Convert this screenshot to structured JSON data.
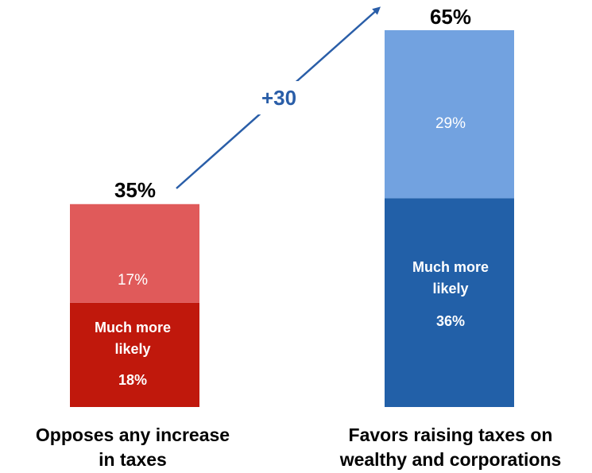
{
  "chart_data": {
    "type": "bar",
    "stacked": true,
    "ylim": [
      0,
      65
    ],
    "categories": [
      {
        "line1": "Opposes any increase",
        "line2": "in taxes"
      },
      {
        "line1": "Favors raising taxes on",
        "line2": "wealthy and corporations"
      }
    ],
    "bars": [
      {
        "total": 35,
        "total_label": "35%",
        "segments": [
          {
            "value": 18,
            "label_line1": "Much more",
            "label_line2": "likely",
            "value_label": "18%",
            "color": "#c0180c"
          },
          {
            "value": 17,
            "value_label": "17%",
            "color": "#e05a5a"
          }
        ]
      },
      {
        "total": 65,
        "total_label": "65%",
        "segments": [
          {
            "value": 36,
            "label_line1": "Much more",
            "label_line2": "likely",
            "value_label": "36%",
            "color": "#2260a8"
          },
          {
            "value": 29,
            "value_label": "29%",
            "color": "#72a2e0"
          }
        ]
      }
    ],
    "annotation": {
      "text": "+30",
      "color": "#2a5ea8"
    }
  }
}
